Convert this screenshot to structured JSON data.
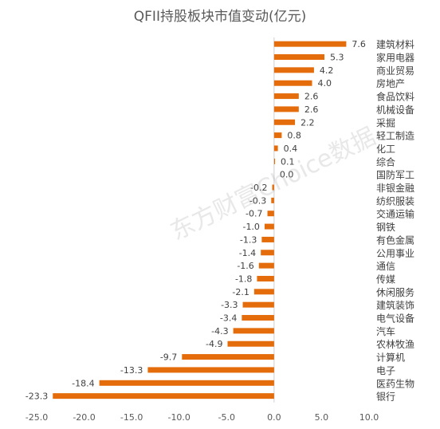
{
  "chart_data": {
    "type": "bar",
    "orientation": "horizontal",
    "title": "QFII持股板块市值变动(亿元)",
    "categories": [
      "建筑材料",
      "家用电器",
      "商业贸易",
      "房地产",
      "食品饮料",
      "机械设备",
      "采掘",
      "轻工制造",
      "化工",
      "综合",
      "国防军工",
      "非银金融",
      "纺织服装",
      "交通运输",
      "钢铁",
      "有色金属",
      "公用事业",
      "通信",
      "传媒",
      "休闲服务",
      "建筑装饰",
      "电气设备",
      "汽车",
      "农林牧渔",
      "计算机",
      "电子",
      "医药生物",
      "银行"
    ],
    "values": [
      7.6,
      5.3,
      4.2,
      4.0,
      2.6,
      2.6,
      2.2,
      0.8,
      0.4,
      0.1,
      0.0,
      -0.2,
      -0.3,
      -0.7,
      -1.0,
      -1.3,
      -1.4,
      -1.6,
      -1.8,
      -2.1,
      -3.3,
      -3.4,
      -4.3,
      -4.9,
      -9.7,
      -13.3,
      -18.4,
      -23.3
    ],
    "value_labels": [
      "7.6",
      "5.3",
      "4.2",
      "4.0",
      "2.6",
      "2.6",
      "2.2",
      "0.8",
      "0.4",
      "0.1",
      "0.0",
      "-0.2",
      "-0.3",
      "-0.7",
      "-1.0",
      "-1.3",
      "-1.4",
      "-1.6",
      "-1.8",
      "-2.1",
      "-3.3",
      "-3.4",
      "-4.3",
      "-4.9",
      "-9.7",
      "-13.3",
      "-18.4",
      "-23.3"
    ],
    "xlim": [
      -25,
      10
    ],
    "xticks": [
      "-25.0",
      "-20.0",
      "-15.0",
      "-10.0",
      "-5.0",
      "0.0",
      "5.0",
      "10.0"
    ],
    "xtick_values": [
      -25,
      -20,
      -15,
      -10,
      -5,
      0,
      5,
      10
    ],
    "xlabel": "",
    "ylabel": "",
    "grid": false,
    "legend": "none",
    "bar_color": "#E46C0A",
    "label_position": "outside bar end; category labels right of axis"
  },
  "watermark": "东方财富Choice数据"
}
